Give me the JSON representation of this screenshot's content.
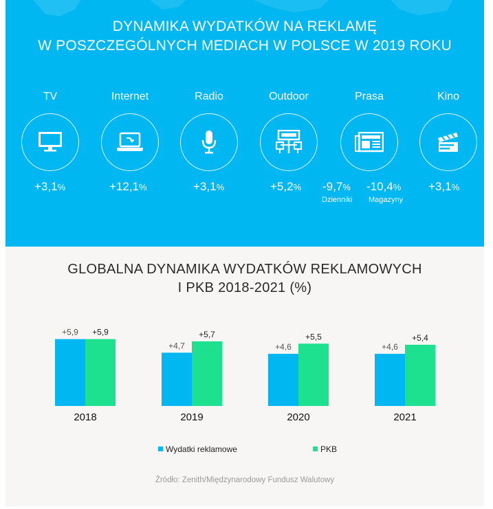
{
  "top": {
    "title_line1": "DYNAMIKA  WYDATKÓW NA REKLAMĘ",
    "title_line2": "W POSZCZEGÓLNYCH  MEDIACH  W POLSCE  W 2019 ROKU",
    "media": [
      {
        "label": "TV",
        "icon": "tv-icon",
        "value": "+3,1",
        "unit": "%"
      },
      {
        "label": "Internet",
        "icon": "laptop-icon",
        "value": "+12,1",
        "unit": "%"
      },
      {
        "label": "Radio",
        "icon": "microphone-icon",
        "value": "+3,1",
        "unit": "%"
      },
      {
        "label": "Outdoor",
        "icon": "billboard-icon",
        "value": "+5,2",
        "unit": "%"
      },
      {
        "label": "Prasa",
        "icon": "newspaper-icon",
        "values": [
          {
            "value": "-9,7",
            "unit": "%",
            "sub": "Dzienniki"
          },
          {
            "value": "-10,4",
            "unit": "%",
            "sub": "Magazyny"
          }
        ]
      },
      {
        "label": "Kino",
        "icon": "clapperboard-icon",
        "value": "+3,1",
        "unit": "%"
      }
    ]
  },
  "chart_data": {
    "type": "bar",
    "title_line1": "GLOBALNA DYNAMIKA  WYDATKÓW  REKLAMOWYCH",
    "title_line2": "I PKB 2018-2021  (%)",
    "categories": [
      "2018",
      "2019",
      "2020",
      "2021"
    ],
    "series": [
      {
        "name": "Wydatki reklamowe",
        "color": "#00b7f1",
        "values": [
          5.9,
          4.7,
          4.6,
          4.6
        ],
        "labels": [
          "+5,9",
          "+4,7",
          "+4,6",
          "+4,6"
        ]
      },
      {
        "name": "PKB",
        "color": "#1ee18f",
        "values": [
          5.9,
          5.7,
          5.5,
          5.4
        ],
        "labels": [
          "+5,9",
          "+5,7",
          "+5,5",
          "+5,4"
        ]
      }
    ],
    "ylim": [
      0,
      6
    ],
    "grid": false,
    "legend_position": "bottom"
  },
  "source": "Źródło:  Zenith/Międzynarodowy  Fundusz Walutowy"
}
